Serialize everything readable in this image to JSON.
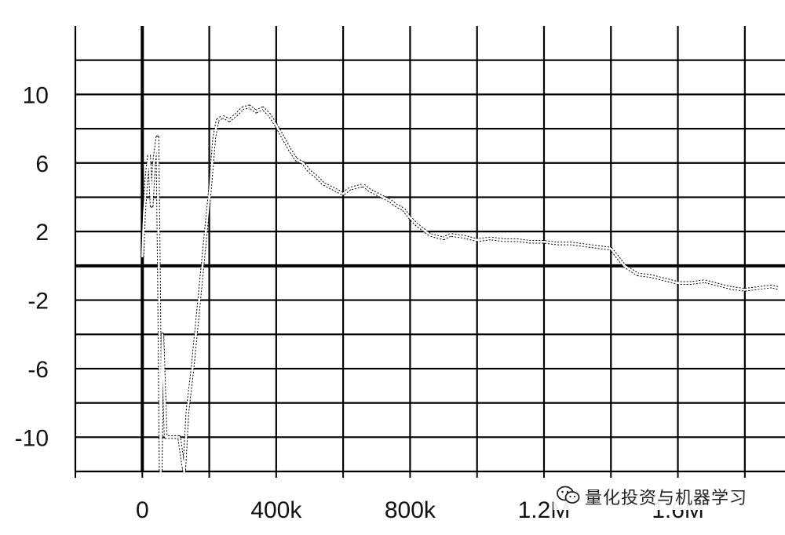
{
  "chart_data": {
    "type": "line",
    "title": "",
    "xlabel": "",
    "ylabel": "",
    "xlim": [
      -200000,
      1920000
    ],
    "ylim": [
      -12,
      14
    ],
    "x_ticks": [
      {
        "value": 0,
        "label": "0"
      },
      {
        "value": 400000,
        "label": "400k"
      },
      {
        "value": 800000,
        "label": "800k"
      },
      {
        "value": 1200000,
        "label": "1.2M"
      },
      {
        "value": 1600000,
        "label": "1.6M"
      }
    ],
    "y_ticks": [
      {
        "value": 10,
        "label": "10"
      },
      {
        "value": 6,
        "label": "6"
      },
      {
        "value": 2,
        "label": "2"
      },
      {
        "value": -2,
        "label": "-2"
      },
      {
        "value": -6,
        "label": "-6"
      },
      {
        "value": -10,
        "label": "-10"
      }
    ],
    "x_gridlines": [
      -200000,
      0,
      200000,
      400000,
      600000,
      800000,
      1000000,
      1200000,
      1400000,
      1600000,
      1800000
    ],
    "y_gridlines": [
      12,
      10,
      8,
      6,
      4,
      2,
      0,
      -2,
      -4,
      -6,
      -8,
      -10,
      -12
    ],
    "grid": true,
    "zero_axes": true,
    "series": [
      {
        "values_note": "",
        "x": [
          0,
          5000,
          12000,
          20000,
          28000,
          35000,
          45000,
          50000,
          55000,
          60000,
          70000,
          90000,
          110000,
          125000,
          135000,
          150000,
          165000,
          180000,
          200000,
          215000,
          225000,
          240000,
          260000,
          280000,
          300000,
          320000,
          340000,
          360000,
          380000,
          400000,
          420000,
          440000,
          460000,
          480000,
          500000,
          520000,
          540000,
          560000,
          580000,
          600000,
          620000,
          640000,
          660000,
          680000,
          700000,
          720000,
          740000,
          760000,
          780000,
          800000,
          820000,
          840000,
          860000,
          880000,
          900000,
          920000,
          960000,
          1000000,
          1040000,
          1080000,
          1120000,
          1160000,
          1200000,
          1240000,
          1280000,
          1320000,
          1360000,
          1400000,
          1420000,
          1440000,
          1480000,
          1520000,
          1560000,
          1600000,
          1640000,
          1680000,
          1720000,
          1760000,
          1800000,
          1840000,
          1880000,
          1900000
        ],
        "y": [
          0.5,
          3.0,
          5.0,
          6.5,
          3.5,
          6.0,
          7.5,
          -1.0,
          -12.0,
          -4.0,
          -10.0,
          -10.0,
          -10.0,
          -12.0,
          -8.5,
          -6.0,
          -3.0,
          0.0,
          4.0,
          7.5,
          8.5,
          8.7,
          8.5,
          8.8,
          9.2,
          9.3,
          9.0,
          9.2,
          8.8,
          8.2,
          7.5,
          6.8,
          6.2,
          6.0,
          5.5,
          5.2,
          4.8,
          4.6,
          4.4,
          4.2,
          4.5,
          4.6,
          4.7,
          4.4,
          4.2,
          4.0,
          3.8,
          3.5,
          3.3,
          2.8,
          2.4,
          2.1,
          1.8,
          1.7,
          1.6,
          1.8,
          1.7,
          1.5,
          1.6,
          1.5,
          1.5,
          1.4,
          1.4,
          1.3,
          1.3,
          1.2,
          1.1,
          1.0,
          0.5,
          0.0,
          -0.5,
          -0.6,
          -0.8,
          -1.0,
          -1.0,
          -0.9,
          -1.1,
          -1.3,
          -1.4,
          -1.3,
          -1.2,
          -1.3
        ],
        "color": "#ffffff"
      }
    ]
  },
  "watermark": {
    "icon": "wechat-icon",
    "text": "量化投资与机器学习"
  }
}
